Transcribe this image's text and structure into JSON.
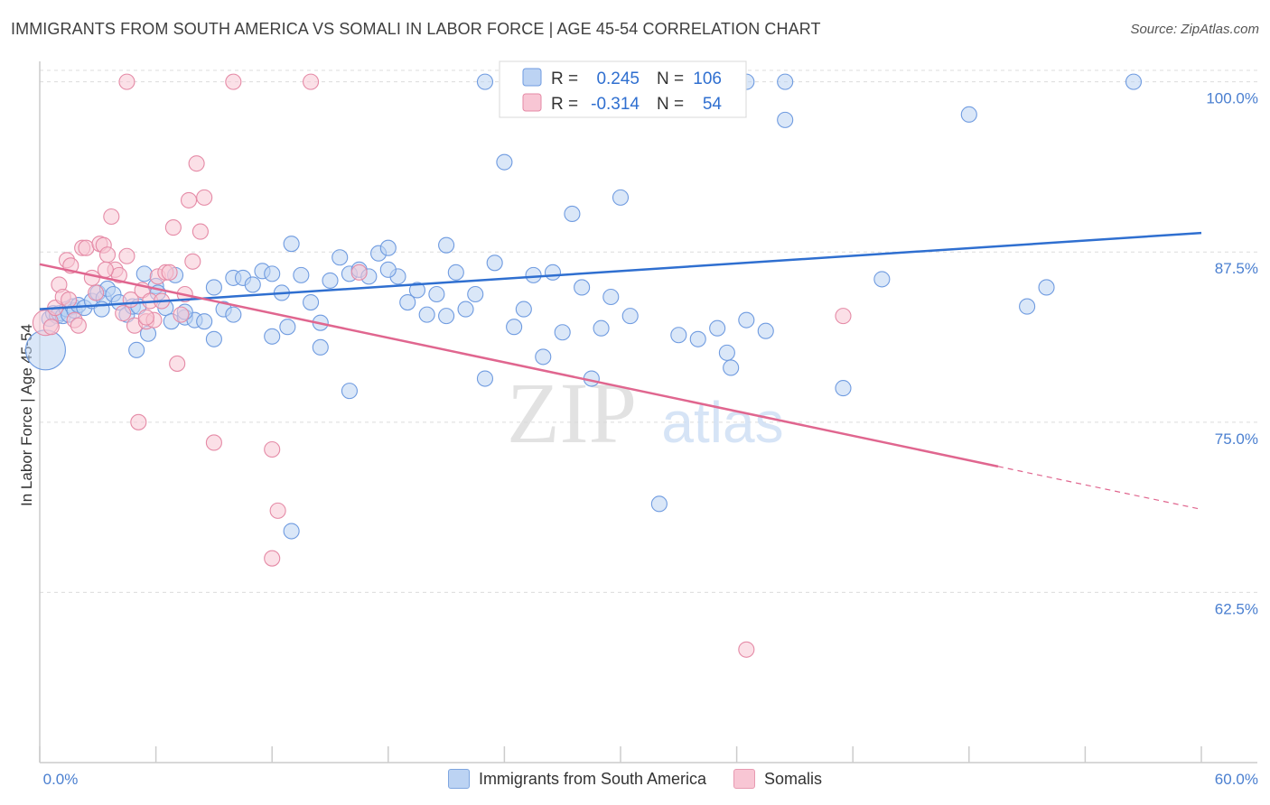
{
  "title": "IMMIGRANTS FROM SOUTH AMERICA VS SOMALI IN LABOR FORCE | AGE 45-54 CORRELATION CHART",
  "source": "Source: ZipAtlas.com",
  "watermark": {
    "zip": "ZIP",
    "atlas": "atlas"
  },
  "chart_data": {
    "type": "scatter",
    "title": "IMMIGRANTS FROM SOUTH AMERICA VS SOMALI IN LABOR FORCE | AGE 45-54 CORRELATION CHART",
    "xlabel": "",
    "ylabel": "In Labor Force | Age 45-54",
    "xlim": [
      0,
      60
    ],
    "ylim": [
      50,
      101.5
    ],
    "x_tick_labels": [
      "0.0%",
      "60.0%"
    ],
    "y_ticks": [
      62.5,
      75.0,
      87.5,
      100.0
    ],
    "y_tick_labels": [
      "62.5%",
      "75.0%",
      "87.5%",
      "100.0%"
    ],
    "grid": "horizontal dashed",
    "stats": [
      {
        "r_label": "R =",
        "r": "0.245",
        "n_label": "N =",
        "n": "106"
      },
      {
        "r_label": "R =",
        "r": "-0.314",
        "n_label": "N =",
        "n": "54"
      }
    ],
    "series": [
      {
        "name": "Immigrants from South America",
        "color": "#6f9be0",
        "fill": "#bcd3f3",
        "trend": {
          "x0": 0,
          "y0": 83.3,
          "x1": 60,
          "y1": 88.9
        },
        "points": [
          [
            0.3,
            80.3
          ],
          [
            0.5,
            82.6
          ],
          [
            0.7,
            83.0
          ],
          [
            0.9,
            82.8
          ],
          [
            1.0,
            83.0
          ],
          [
            1.2,
            82.8
          ],
          [
            1.4,
            83.3
          ],
          [
            1.5,
            82.9
          ],
          [
            1.7,
            83.5
          ],
          [
            1.8,
            83.2
          ],
          [
            2.0,
            83.6
          ],
          [
            2.3,
            83.4
          ],
          [
            2.7,
            83.9
          ],
          [
            3.0,
            84.5
          ],
          [
            3.3,
            84.1
          ],
          [
            3.5,
            84.8
          ],
          [
            3.8,
            84.4
          ],
          [
            4.1,
            83.8
          ],
          [
            4.5,
            82.9
          ],
          [
            4.8,
            83.5
          ],
          [
            5.1,
            83.5
          ],
          [
            5.4,
            85.9
          ],
          [
            5.6,
            81.5
          ],
          [
            6.0,
            85.0
          ],
          [
            6.1,
            84.5
          ],
          [
            6.5,
            83.4
          ],
          [
            6.8,
            82.4
          ],
          [
            7.0,
            85.8
          ],
          [
            7.5,
            82.7
          ],
          [
            8.0,
            82.5
          ],
          [
            8.5,
            82.4
          ],
          [
            9.0,
            84.9
          ],
          [
            9.5,
            83.3
          ],
          [
            10.0,
            85.6
          ],
          [
            10.5,
            85.6
          ],
          [
            11.0,
            85.1
          ],
          [
            11.5,
            86.1
          ],
          [
            12.0,
            85.9
          ],
          [
            12.5,
            84.5
          ],
          [
            13.0,
            88.1
          ],
          [
            13.5,
            85.8
          ],
          [
            14.0,
            83.8
          ],
          [
            14.5,
            82.3
          ],
          [
            15.0,
            85.4
          ],
          [
            15.5,
            87.1
          ],
          [
            16.0,
            85.9
          ],
          [
            16.5,
            86.2
          ],
          [
            17.0,
            85.7
          ],
          [
            17.5,
            87.4
          ],
          [
            18.0,
            87.8
          ],
          [
            18.5,
            85.7
          ],
          [
            19.0,
            83.8
          ],
          [
            19.5,
            84.7
          ],
          [
            20.0,
            82.9
          ],
          [
            20.5,
            84.4
          ],
          [
            21.0,
            82.8
          ],
          [
            21.5,
            86.0
          ],
          [
            22.0,
            83.3
          ],
          [
            22.5,
            84.4
          ],
          [
            23.0,
            78.2
          ],
          [
            23.5,
            86.7
          ],
          [
            24.0,
            94.1
          ],
          [
            24.5,
            82.0
          ],
          [
            25.0,
            83.3
          ],
          [
            25.5,
            85.8
          ],
          [
            26.0,
            79.8
          ],
          [
            26.5,
            86.0
          ],
          [
            27.0,
            81.6
          ],
          [
            27.5,
            90.3
          ],
          [
            28.0,
            84.9
          ],
          [
            28.5,
            78.2
          ],
          [
            29.0,
            81.9
          ],
          [
            29.5,
            84.2
          ],
          [
            30.0,
            91.5
          ],
          [
            30.5,
            82.8
          ],
          [
            32.0,
            69.0
          ],
          [
            33.0,
            81.4
          ],
          [
            34.0,
            81.1
          ],
          [
            35.0,
            81.9
          ],
          [
            35.5,
            80.1
          ],
          [
            35.7,
            79.0
          ],
          [
            36.5,
            82.5
          ],
          [
            37.5,
            81.7
          ],
          [
            38.5,
            97.2
          ],
          [
            41.5,
            77.5
          ],
          [
            43.5,
            85.5
          ],
          [
            48.0,
            97.6
          ],
          [
            51.0,
            83.5
          ],
          [
            52.0,
            84.9
          ],
          [
            56.5,
            100.0
          ],
          [
            23.0,
            100.0
          ],
          [
            25.0,
            100.0
          ],
          [
            36.5,
            100.0
          ],
          [
            38.5,
            100.0
          ],
          [
            14.5,
            80.5
          ],
          [
            16.0,
            77.3
          ],
          [
            12.0,
            81.3
          ],
          [
            9.0,
            81.1
          ],
          [
            5.0,
            80.3
          ],
          [
            13.0,
            67.0
          ],
          [
            21.0,
            88.0
          ],
          [
            10.0,
            82.9
          ],
          [
            7.5,
            83.1
          ],
          [
            18.0,
            86.2
          ],
          [
            12.8,
            82.0
          ],
          [
            3.2,
            83.3
          ]
        ]
      },
      {
        "name": "Somalis",
        "color": "#e58aa6",
        "fill": "#f8c6d4",
        "trend": {
          "x0": 0,
          "y0": 86.6,
          "x1": 60,
          "y1": 68.6,
          "solid_until_x": 49.5
        },
        "points": [
          [
            0.3,
            82.3
          ],
          [
            0.6,
            82.0
          ],
          [
            0.8,
            83.4
          ],
          [
            1.0,
            85.1
          ],
          [
            1.2,
            84.2
          ],
          [
            1.4,
            86.9
          ],
          [
            1.6,
            86.5
          ],
          [
            1.8,
            82.5
          ],
          [
            2.0,
            82.1
          ],
          [
            2.2,
            87.8
          ],
          [
            2.4,
            87.8
          ],
          [
            2.7,
            85.6
          ],
          [
            2.9,
            84.5
          ],
          [
            3.1,
            88.1
          ],
          [
            3.3,
            88.0
          ],
          [
            3.5,
            87.3
          ],
          [
            3.7,
            90.1
          ],
          [
            3.9,
            86.2
          ],
          [
            4.1,
            85.8
          ],
          [
            4.3,
            83.0
          ],
          [
            4.5,
            87.2
          ],
          [
            4.7,
            84.0
          ],
          [
            4.9,
            82.1
          ],
          [
            5.1,
            75.0
          ],
          [
            5.3,
            84.7
          ],
          [
            5.5,
            82.4
          ],
          [
            5.7,
            83.9
          ],
          [
            5.9,
            82.5
          ],
          [
            6.1,
            85.7
          ],
          [
            6.3,
            83.9
          ],
          [
            6.5,
            86.0
          ],
          [
            6.7,
            86.0
          ],
          [
            6.9,
            89.3
          ],
          [
            7.1,
            79.3
          ],
          [
            7.3,
            82.9
          ],
          [
            7.5,
            84.4
          ],
          [
            7.7,
            91.3
          ],
          [
            7.9,
            86.8
          ],
          [
            8.1,
            94.0
          ],
          [
            8.3,
            89.0
          ],
          [
            8.5,
            91.5
          ],
          [
            9.0,
            73.5
          ],
          [
            4.5,
            100.0
          ],
          [
            10.0,
            100.0
          ],
          [
            14.0,
            100.0
          ],
          [
            12.0,
            73.0
          ],
          [
            12.3,
            68.5
          ],
          [
            12.0,
            65.0
          ],
          [
            36.5,
            58.3
          ],
          [
            41.5,
            82.8
          ],
          [
            16.5,
            86.0
          ],
          [
            5.5,
            82.7
          ],
          [
            3.4,
            86.2
          ],
          [
            1.5,
            84.0
          ]
        ]
      }
    ]
  },
  "legend": {
    "items": [
      {
        "label": "Immigrants from South America"
      },
      {
        "label": "Somalis"
      }
    ]
  }
}
